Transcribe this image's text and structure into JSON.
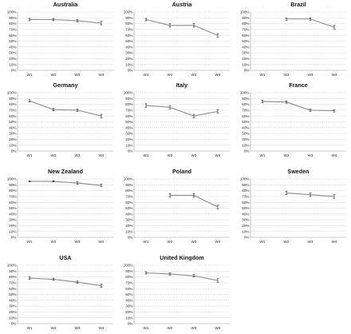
{
  "chart_data": [
    {
      "type": "line",
      "title": "Australia",
      "categories": [
        "W1",
        "W2",
        "W3",
        "W4"
      ],
      "yticks": [
        "0%",
        "10%",
        "20%",
        "30%",
        "40%",
        "50%",
        "60%",
        "70%",
        "80%",
        "90%",
        "100%"
      ],
      "ylim": [
        0,
        100
      ],
      "values": [
        87,
        87,
        85,
        81
      ],
      "err": [
        2,
        2,
        2,
        3
      ],
      "grid": true
    },
    {
      "type": "line",
      "title": "Austria",
      "categories": [
        "W1",
        "W2",
        "W3",
        "W4"
      ],
      "yticks": [
        "0%",
        "10%",
        "20%",
        "30%",
        "40%",
        "50%",
        "60%",
        "70%",
        "80%",
        "90%",
        "100%"
      ],
      "ylim": [
        0,
        100
      ],
      "values": [
        87,
        77,
        77,
        60
      ],
      "err": [
        2,
        3,
        3,
        3
      ],
      "grid": true
    },
    {
      "type": "line",
      "title": "Brazil",
      "categories": [
        "W1",
        "W2",
        "W3",
        "W4"
      ],
      "yticks": [
        "0%",
        "10%",
        "20%",
        "30%",
        "40%",
        "50%",
        "60%",
        "70%",
        "80%",
        "90%",
        "100%"
      ],
      "ylim": [
        0,
        100
      ],
      "values": null,
      "values_by_index": [
        null,
        88,
        88,
        74
      ],
      "err": [
        null,
        2,
        2,
        3
      ],
      "grid": true
    },
    {
      "type": "line",
      "title": "Germany",
      "categories": [
        "W1",
        "W2",
        "W3",
        "W4"
      ],
      "yticks": [
        "0%",
        "10%",
        "20%",
        "30%",
        "40%",
        "50%",
        "60%",
        "70%",
        "80%",
        "90%",
        "100%"
      ],
      "ylim": [
        0,
        100
      ],
      "values": [
        86,
        71,
        70,
        60
      ],
      "err": [
        2,
        2,
        2,
        3
      ],
      "grid": true
    },
    {
      "type": "line",
      "title": "Italy",
      "categories": [
        "W1",
        "W2",
        "W3",
        "W4"
      ],
      "yticks": [
        "0%",
        "10%",
        "20%",
        "30%",
        "40%",
        "50%",
        "60%",
        "70%",
        "80%",
        "90%",
        "100%"
      ],
      "ylim": [
        0,
        100
      ],
      "values": [
        78,
        75,
        60,
        68
      ],
      "err": [
        3,
        3,
        3,
        3
      ],
      "grid": true
    },
    {
      "type": "line",
      "title": "France",
      "categories": [
        "W1",
        "W2",
        "W3",
        "W4"
      ],
      "yticks": [
        "0%",
        "10%",
        "20%",
        "30%",
        "40%",
        "50%",
        "60%",
        "70%",
        "80%",
        "90%",
        "100%"
      ],
      "ylim": [
        0,
        100
      ],
      "values": [
        85,
        84,
        70,
        69
      ],
      "err": [
        2,
        2,
        2,
        2
      ],
      "grid": true
    },
    {
      "type": "line",
      "title": "New Zealand",
      "categories": [
        "W1",
        "W2",
        "W3",
        "W4"
      ],
      "yticks": [
        "0%",
        "10%",
        "20%",
        "30%",
        "40%",
        "50%",
        "60%",
        "70%",
        "80%",
        "90%",
        "100%"
      ],
      "ylim": [
        0,
        100
      ],
      "values": [
        96,
        96,
        93,
        89
      ],
      "err": [
        1,
        1,
        2,
        2
      ],
      "grid": true
    },
    {
      "type": "line",
      "title": "Poland",
      "categories": [
        "W1",
        "W2",
        "W3",
        "W4"
      ],
      "yticks": [
        "0%",
        "10%",
        "20%",
        "30%",
        "40%",
        "50%",
        "60%",
        "70%",
        "80%",
        "90%",
        "100%"
      ],
      "ylim": [
        0,
        100
      ],
      "values": null,
      "values_by_index": [
        null,
        72,
        72,
        52
      ],
      "err": [
        null,
        3,
        3,
        3
      ],
      "grid": true
    },
    {
      "type": "line",
      "title": "Sweden",
      "categories": [
        "W1",
        "W2",
        "W3",
        "W4"
      ],
      "yticks": [
        "0%",
        "10%",
        "20%",
        "30%",
        "40%",
        "50%",
        "60%",
        "70%",
        "80%",
        "90%",
        "100%"
      ],
      "ylim": [
        0,
        100
      ],
      "values": null,
      "values_by_index": [
        null,
        76,
        73,
        70
      ],
      "err": [
        null,
        3,
        3,
        3
      ],
      "grid": true
    },
    {
      "type": "line",
      "title": "USA",
      "categories": [
        "W1",
        "W2",
        "W3",
        "W4"
      ],
      "yticks": [
        "0%",
        "10%",
        "20%",
        "30%",
        "40%",
        "50%",
        "60%",
        "70%",
        "80%",
        "90%",
        "100%"
      ],
      "ylim": [
        0,
        100
      ],
      "values": [
        78,
        76,
        71,
        65
      ],
      "err": [
        2,
        2,
        2,
        3
      ],
      "grid": true
    },
    {
      "type": "line",
      "title": "United Kingdom",
      "categories": [
        "W1",
        "W2",
        "W3",
        "W4"
      ],
      "yticks": [
        "0%",
        "10%",
        "20%",
        "30%",
        "40%",
        "50%",
        "60%",
        "70%",
        "80%",
        "90%",
        "100%"
      ],
      "ylim": [
        0,
        100
      ],
      "values": [
        87,
        85,
        82,
        74
      ],
      "err": [
        2,
        2,
        2,
        3
      ],
      "grid": true
    }
  ],
  "colors": {
    "series_line": "#8a8a8a",
    "error_bar": "#111111",
    "gridline": "#bdbdbd"
  }
}
